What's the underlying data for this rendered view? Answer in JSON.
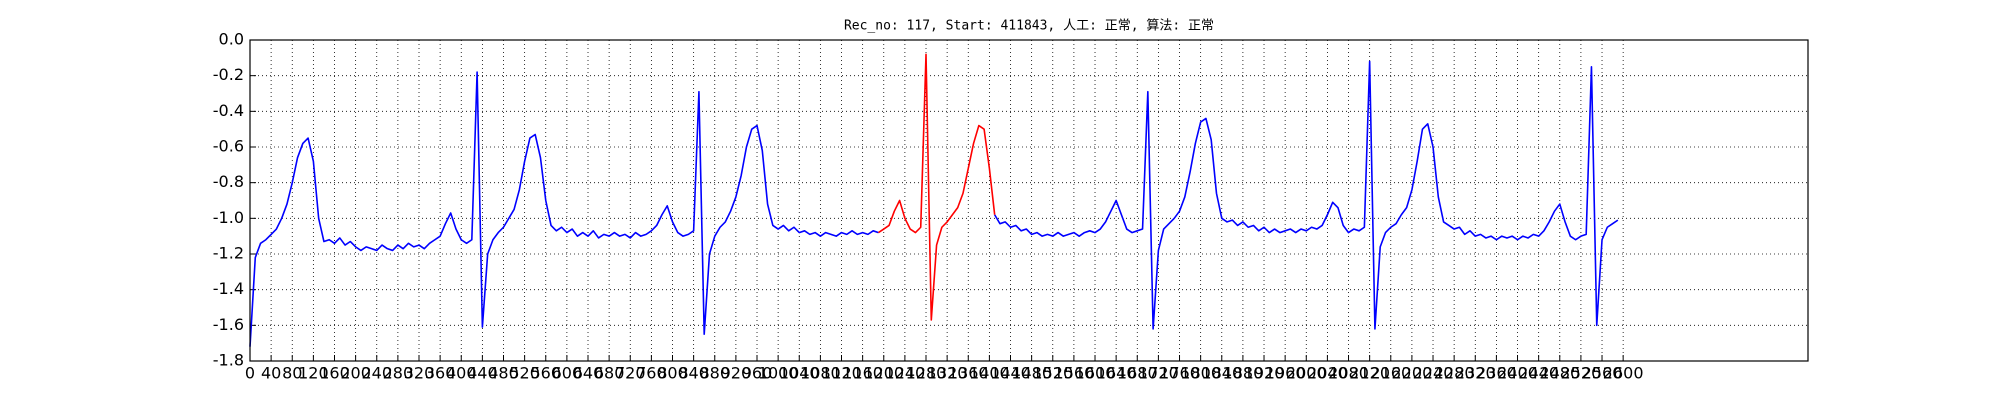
{
  "chart_data": {
    "type": "line",
    "title": "Rec_no: 117, Start: 411843, 人工: 正常, 算法: 正常",
    "xlim": [
      0,
      2950
    ],
    "ylim": [
      -1.8,
      0
    ],
    "grid": true,
    "xticks": [
      0,
      40,
      80,
      120,
      160,
      200,
      240,
      280,
      320,
      360,
      400,
      440,
      480,
      520,
      560,
      600,
      640,
      680,
      720,
      760,
      800,
      840,
      880,
      920,
      960,
      1000,
      1040,
      1080,
      1120,
      1160,
      1200,
      1240,
      1280,
      1320,
      1360,
      1400,
      1440,
      1480,
      1520,
      1560,
      1600,
      1640,
      1680,
      1720,
      1760,
      1800,
      1840,
      1880,
      1920,
      1960,
      2000,
      2040,
      2080,
      2120,
      2160,
      2200,
      2240,
      2280,
      2320,
      2360,
      2400,
      2440,
      2480,
      2520,
      2560,
      2600
    ],
    "yticks": [
      {
        "value": 0,
        "label": "0.0"
      },
      -0.2,
      -0.4,
      -0.6,
      -0.8,
      {
        "value": -1,
        "label": "-1.0"
      },
      -1.2,
      -1.4,
      -1.6,
      -1.8
    ],
    "x": [
      0,
      10,
      20,
      30,
      40,
      50,
      60,
      70,
      80,
      90,
      100,
      110,
      120,
      130,
      140,
      150,
      160,
      170,
      180,
      190,
      200,
      210,
      220,
      230,
      240,
      250,
      260,
      270,
      280,
      290,
      300,
      310,
      320,
      330,
      340,
      350,
      360,
      370,
      380,
      390,
      400,
      410,
      420,
      430,
      440,
      450,
      460,
      470,
      480,
      490,
      500,
      510,
      520,
      530,
      540,
      550,
      560,
      570,
      580,
      590,
      600,
      610,
      620,
      630,
      640,
      650,
      660,
      670,
      680,
      690,
      700,
      710,
      720,
      730,
      740,
      750,
      760,
      770,
      780,
      790,
      800,
      810,
      820,
      830,
      840,
      850,
      860,
      870,
      880,
      890,
      900,
      910,
      920,
      930,
      940,
      950,
      960,
      970,
      980,
      990,
      1000,
      1010,
      1020,
      1030,
      1040,
      1050,
      1060,
      1070,
      1080,
      1090,
      1100,
      1110,
      1120,
      1130,
      1140,
      1150,
      1160,
      1170,
      1180,
      1190,
      1200,
      1210,
      1220,
      1230,
      1240,
      1250,
      1260,
      1270,
      1280,
      1290,
      1300,
      1310,
      1320,
      1330,
      1340,
      1350,
      1360,
      1370,
      1380,
      1390,
      1400,
      1410,
      1420,
      1430,
      1440,
      1450,
      1460,
      1470,
      1480,
      1490,
      1500,
      1510,
      1520,
      1530,
      1540,
      1550,
      1560,
      1570,
      1580,
      1590,
      1600,
      1610,
      1620,
      1630,
      1640,
      1650,
      1660,
      1670,
      1680,
      1690,
      1700,
      1710,
      1720,
      1730,
      1740,
      1750,
      1760,
      1770,
      1780,
      1790,
      1800,
      1810,
      1820,
      1830,
      1840,
      1850,
      1860,
      1870,
      1880,
      1890,
      1900,
      1910,
      1920,
      1930,
      1940,
      1950,
      1960,
      1970,
      1980,
      1990,
      2000,
      2010,
      2020,
      2030,
      2040,
      2050,
      2060,
      2070,
      2080,
      2090,
      2100,
      2110,
      2120,
      2130,
      2140,
      2150,
      2160,
      2170,
      2180,
      2190,
      2200,
      2210,
      2220,
      2230,
      2240,
      2250,
      2260,
      2270,
      2280,
      2290,
      2300,
      2310,
      2320,
      2330,
      2340,
      2350,
      2360,
      2370,
      2380,
      2390,
      2400,
      2410,
      2420,
      2430,
      2440,
      2450,
      2460,
      2470,
      2480,
      2490,
      2500,
      2510,
      2520,
      2530,
      2540,
      2550,
      2560,
      2570,
      2580,
      2590
    ],
    "series": [
      {
        "color": "#0000ff",
        "values": [
          -1.72,
          -1.22,
          -1.14,
          -1.12,
          -1.09,
          -1.06,
          -1.0,
          -0.92,
          -0.8,
          -0.66,
          -0.58,
          -0.55,
          -0.68,
          -1.0,
          -1.13,
          -1.12,
          -1.14,
          -1.11,
          -1.15,
          -1.13,
          -1.16,
          -1.18,
          -1.16,
          -1.17,
          -1.18,
          -1.15,
          -1.17,
          -1.18,
          -1.15,
          -1.17,
          -1.14,
          -1.16,
          -1.15,
          -1.17,
          -1.14,
          -1.12,
          -1.1,
          -1.03,
          -0.97,
          -1.06,
          -1.12,
          -1.14,
          -1.12,
          -0.18,
          -1.61,
          -1.2,
          -1.12,
          -1.08,
          -1.05,
          -1.0,
          -0.95,
          -0.84,
          -0.68,
          -0.55,
          -0.53,
          -0.66,
          -0.9,
          -1.04,
          -1.07,
          -1.05,
          -1.08,
          -1.06,
          -1.1,
          -1.08,
          -1.1,
          -1.07,
          -1.11,
          -1.09,
          -1.1,
          -1.08,
          -1.1,
          -1.09,
          -1.11,
          -1.08,
          -1.1,
          -1.09,
          -1.07,
          -1.04,
          -0.98,
          -0.93,
          -1.02,
          -1.08,
          -1.1,
          -1.09,
          -1.07,
          -0.29,
          -1.65,
          -1.2,
          -1.1,
          -1.05,
          -1.02,
          -0.96,
          -0.88,
          -0.76,
          -0.6,
          -0.5,
          -0.48,
          -0.62,
          -0.92,
          -1.04,
          -1.06,
          -1.04,
          -1.07,
          -1.05,
          -1.08,
          -1.07,
          -1.09,
          -1.08,
          -1.1,
          -1.08,
          -1.09,
          -1.1,
          -1.08,
          -1.09,
          -1.07,
          -1.09,
          -1.08,
          -1.09,
          -1.07,
          -1.08,
          null,
          null,
          null,
          null,
          null,
          null,
          null,
          null,
          null,
          null,
          null,
          null,
          null,
          null,
          null,
          null,
          null,
          null,
          null,
          null,
          null,
          -0.98,
          -1.03,
          -1.02,
          -1.05,
          -1.04,
          -1.07,
          -1.06,
          -1.09,
          -1.08,
          -1.1,
          -1.09,
          -1.1,
          -1.08,
          -1.1,
          -1.09,
          -1.08,
          -1.1,
          -1.08,
          -1.07,
          -1.08,
          -1.06,
          -1.02,
          -0.96,
          -0.9,
          -0.98,
          -1.06,
          -1.08,
          -1.07,
          -1.06,
          -0.29,
          -1.62,
          -1.18,
          -1.06,
          -1.03,
          -1.0,
          -0.96,
          -0.88,
          -0.74,
          -0.58,
          -0.46,
          -0.44,
          -0.56,
          -0.86,
          -1.0,
          -1.02,
          -1.01,
          -1.04,
          -1.02,
          -1.05,
          -1.04,
          -1.07,
          -1.05,
          -1.08,
          -1.06,
          -1.08,
          -1.07,
          -1.06,
          -1.08,
          -1.06,
          -1.07,
          -1.05,
          -1.06,
          -1.04,
          -0.98,
          -0.91,
          -0.94,
          -1.04,
          -1.08,
          -1.06,
          -1.07,
          -1.05,
          -0.12,
          -1.62,
          -1.16,
          -1.08,
          -1.05,
          -1.03,
          -0.98,
          -0.94,
          -0.84,
          -0.68,
          -0.5,
          -0.47,
          -0.6,
          -0.88,
          -1.02,
          -1.04,
          -1.06,
          -1.05,
          -1.09,
          -1.07,
          -1.1,
          -1.09,
          -1.11,
          -1.1,
          -1.12,
          -1.1,
          -1.11,
          -1.1,
          -1.12,
          -1.1,
          -1.11,
          -1.09,
          -1.1,
          -1.07,
          -1.02,
          -0.96,
          -0.92,
          -1.02,
          -1.1,
          -1.12,
          -1.1,
          -1.09,
          -0.15,
          -1.6,
          -1.12,
          -1.05,
          -1.03,
          -1.01
        ]
      },
      {
        "color": "#ff0000",
        "x": [
          1190,
          1200,
          1210,
          1220,
          1230,
          1240,
          1250,
          1260,
          1270,
          1280,
          1290,
          1300,
          1310,
          1320,
          1330,
          1340,
          1350,
          1360,
          1370,
          1380,
          1390,
          1400,
          1410
        ],
        "values": [
          -1.08,
          -1.06,
          -1.04,
          -0.96,
          -0.9,
          -1.0,
          -1.06,
          -1.08,
          -1.05,
          -0.08,
          -1.57,
          -1.15,
          -1.05,
          -1.02,
          -0.98,
          -0.94,
          -0.86,
          -0.72,
          -0.58,
          -0.48,
          -0.5,
          -0.72,
          -0.98
        ]
      }
    ]
  }
}
